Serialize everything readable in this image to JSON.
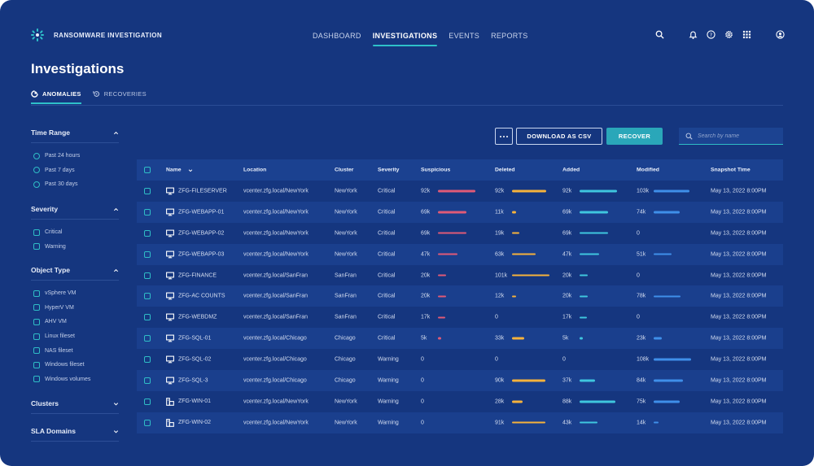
{
  "app": {
    "title": "RANSOMWARE INVESTIGATION"
  },
  "nav": [
    "DASHBOARD",
    "INVESTIGATIONS",
    "EVENTS",
    "REPORTS"
  ],
  "nav_active": "INVESTIGATIONS",
  "top_icons": [
    "search-icon",
    "bell-icon",
    "help-icon",
    "gear-icon",
    "apps-grid-icon",
    "user-icon"
  ],
  "page": {
    "title": "Investigations"
  },
  "subtabs": [
    {
      "label": "ANOMALIES",
      "icon": "anomaly-icon",
      "active": true
    },
    {
      "label": "RECOVERIES",
      "icon": "recovery-icon",
      "active": false
    }
  ],
  "filters": [
    {
      "title": "Time Range",
      "expanded": true,
      "kind": "radio",
      "options": [
        "Past 24 hours",
        "Past 7 days",
        "Past 30 days"
      ]
    },
    {
      "title": "Severity",
      "expanded": true,
      "kind": "checkbox",
      "options": [
        "Critical",
        "Warning"
      ]
    },
    {
      "title": "Object Type",
      "expanded": true,
      "kind": "checkbox",
      "options": [
        "vSphere VM",
        "HyperV VM",
        "AHV VM",
        "Linux fileset",
        "NAS fileset",
        "Windows fileset",
        "Windows volumes"
      ]
    },
    {
      "title": "Clusters",
      "expanded": false,
      "kind": "checkbox",
      "options": []
    },
    {
      "title": "SLA Domains",
      "expanded": false,
      "kind": "checkbox",
      "options": []
    }
  ],
  "toolbar": {
    "csv_label": "DOWNLOAD AS CSV",
    "recover_label": "RECOVER",
    "search_placeholder": "Search by name"
  },
  "table": {
    "columns": [
      "Name",
      "Location",
      "Cluster",
      "Severity",
      "Suspicious",
      "Deleted",
      "Added",
      "Modified",
      "Snapshot Time"
    ],
    "bar_max": {
      "suspicious": 92,
      "deleted": 101,
      "added": 92,
      "modified": 108
    },
    "rows": [
      {
        "name": "ZFG-FILESERVER",
        "icon": "monitor-icon",
        "location": "vcenter.zfg.local/NewYork",
        "cluster": "NewYork",
        "severity": "Critical",
        "suspicious": "92k",
        "suspicious_n": 92,
        "deleted": "92k",
        "deleted_n": 92,
        "added": "92k",
        "added_n": 92,
        "modified": "103k",
        "modified_n": 103,
        "snapshot": "May 13, 2022 8:00PM"
      },
      {
        "name": "ZFG-WEBAPP-01",
        "icon": "monitor-icon",
        "location": "vcenter.zfg.local/NewYork",
        "cluster": "NewYork",
        "severity": "Critical",
        "suspicious": "69k",
        "suspicious_n": 69,
        "deleted": "11k",
        "deleted_n": 11,
        "added": "69k",
        "added_n": 69,
        "modified": "74k",
        "modified_n": 74,
        "snapshot": "May 13, 2022 8:00PM"
      },
      {
        "name": "ZFG-WEBAPP-02",
        "icon": "monitor-icon",
        "location": "vcenter.zfg.local/NewYork",
        "cluster": "NewYork",
        "severity": "Critical",
        "suspicious": "69k",
        "suspicious_n": 69,
        "deleted": "19k",
        "deleted_n": 19,
        "added": "69k",
        "added_n": 69,
        "modified": "0",
        "modified_n": 0,
        "snapshot": "May 13, 2022 8:00PM"
      },
      {
        "name": "ZFG-WEBAPP-03",
        "icon": "monitor-icon",
        "location": "vcenter.zfg.local/NewYork",
        "cluster": "NewYork",
        "severity": "Critical",
        "suspicious": "47k",
        "suspicious_n": 47,
        "deleted": "63k",
        "deleted_n": 63,
        "added": "47k",
        "added_n": 47,
        "modified": "51k",
        "modified_n": 51,
        "snapshot": "May 13, 2022 8:00PM"
      },
      {
        "name": "ZFG-FINANCE",
        "icon": "monitor-icon",
        "location": "vcenter.zfg.local/SanFran",
        "cluster": "SanFran",
        "severity": "Critical",
        "suspicious": "20k",
        "suspicious_n": 20,
        "deleted": "101k",
        "deleted_n": 101,
        "added": "20k",
        "added_n": 20,
        "modified": "0",
        "modified_n": 0,
        "snapshot": "May 13, 2022 8:00PM"
      },
      {
        "name": "ZFG-AC COUNTS",
        "icon": "monitor-icon",
        "location": "vcenter.zfg.local/SanFran",
        "cluster": "SanFran",
        "severity": "Critical",
        "suspicious": "20k",
        "suspicious_n": 20,
        "deleted": "12k",
        "deleted_n": 12,
        "added": "20k",
        "added_n": 20,
        "modified": "78k",
        "modified_n": 78,
        "snapshot": "May 13, 2022 8:00PM"
      },
      {
        "name": "ZFG-WEBDMZ",
        "icon": "monitor-icon",
        "location": "vcenter.zfg.local/SanFran",
        "cluster": "SanFran",
        "severity": "Critical",
        "suspicious": "17k",
        "suspicious_n": 17,
        "deleted": "0",
        "deleted_n": 0,
        "added": "17k",
        "added_n": 17,
        "modified": "0",
        "modified_n": 0,
        "snapshot": "May 13, 2022 8:00PM"
      },
      {
        "name": "ZFG-SQL-01",
        "icon": "monitor-icon",
        "location": "vcenter.zfg.local/Chicago",
        "cluster": "Chicago",
        "severity": "Critical",
        "suspicious": "5k",
        "suspicious_n": 5,
        "deleted": "33k",
        "deleted_n": 33,
        "added": "5k",
        "added_n": 5,
        "modified": "23k",
        "modified_n": 23,
        "snapshot": "May 13, 2022 8:00PM"
      },
      {
        "name": "ZFG-SQL-02",
        "icon": "monitor-icon",
        "location": "vcenter.zfg.local/Chicago",
        "cluster": "Chicago",
        "severity": "Warning",
        "suspicious": "0",
        "suspicious_n": 0,
        "deleted": "0",
        "deleted_n": 0,
        "added": "0",
        "added_n": 0,
        "modified": "108k",
        "modified_n": 108,
        "snapshot": "May 13, 2022 8:00PM"
      },
      {
        "name": "ZFG-SQL-3",
        "icon": "monitor-icon",
        "location": "vcenter.zfg.local/Chicago",
        "cluster": "Chicago",
        "severity": "Warning",
        "suspicious": "0",
        "suspicious_n": 0,
        "deleted": "90k",
        "deleted_n": 90,
        "added": "37k",
        "added_n": 37,
        "modified": "84k",
        "modified_n": 84,
        "snapshot": "May 13, 2022 8:00PM"
      },
      {
        "name": "ZFG-WIN-01",
        "icon": "server-icon",
        "location": "vcenter.zfg.local/NewYork",
        "cluster": "NewYork",
        "severity": "Warning",
        "suspicious": "0",
        "suspicious_n": 0,
        "deleted": "28k",
        "deleted_n": 28,
        "added": "88k",
        "added_n": 88,
        "modified": "75k",
        "modified_n": 75,
        "snapshot": "May 13, 2022 8:00PM"
      },
      {
        "name": "ZFG-WIN-02",
        "icon": "server-icon",
        "location": "vcenter.zfg.local/NewYork",
        "cluster": "NewYork",
        "severity": "Warning",
        "suspicious": "0",
        "suspicious_n": 0,
        "deleted": "91k",
        "deleted_n": 91,
        "added": "43k",
        "added_n": 43,
        "modified": "14k",
        "modified_n": 14,
        "snapshot": "May 13, 2022 8:00PM"
      }
    ]
  },
  "colors": {
    "background": "#15367f",
    "accent": "#2ec0c9",
    "suspicious": "#e05a77",
    "deleted": "#f5b23c",
    "added": "#3fc6de",
    "modified": "#3f8fe9"
  }
}
